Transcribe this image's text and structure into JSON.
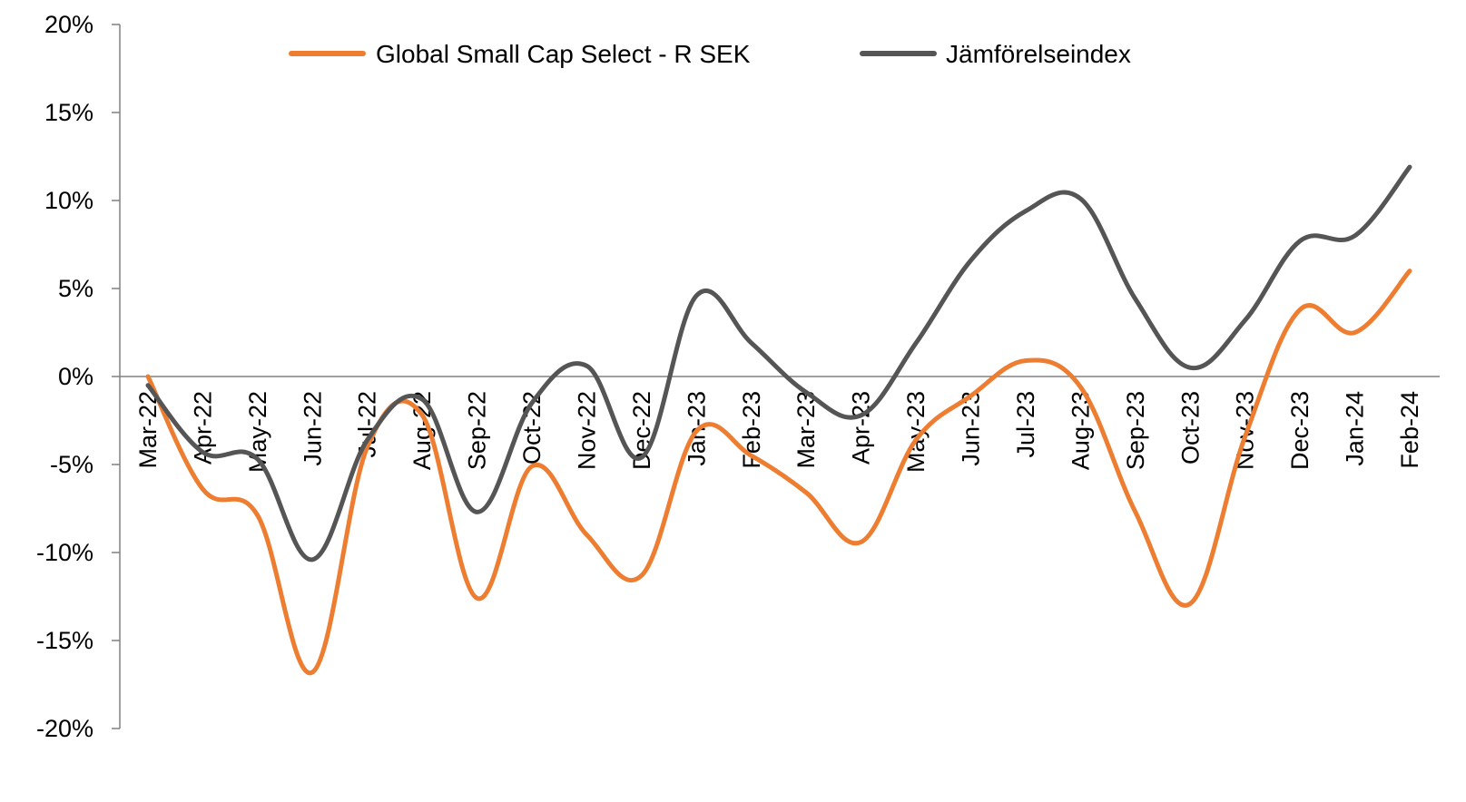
{
  "chart_data": {
    "type": "line",
    "title": "",
    "xlabel": "",
    "ylabel": "",
    "ylim": [
      -0.2,
      0.2
    ],
    "yticks": [
      0.2,
      0.15,
      0.1,
      0.05,
      0.0,
      -0.05,
      -0.1,
      -0.15,
      -0.2
    ],
    "ytick_labels": [
      "20%",
      "15%",
      "10%",
      "5%",
      "0%",
      "-5%",
      "-10%",
      "-15%",
      "-20%"
    ],
    "categories": [
      "Mar-22",
      "Apr-22",
      "May-22",
      "Jun-22",
      "Jul-22",
      "Aug-22",
      "Sep-22",
      "Oct-22",
      "Nov-22",
      "Dec-22",
      "Jan-23",
      "Feb-23",
      "Mar-23",
      "Apr-23",
      "May-23",
      "Jun-23",
      "Jul-23",
      "Aug-23",
      "Sep-23",
      "Oct-23",
      "Nov-23",
      "Dec-23",
      "Jan-24",
      "Feb-24"
    ],
    "legend_position": "top",
    "grid": false,
    "series": [
      {
        "name": "Global Small Cap Select - R SEK",
        "color": "#ED7D31",
        "values": [
          0.0,
          -0.064,
          -0.079,
          -0.168,
          -0.04,
          -0.022,
          -0.126,
          -0.051,
          -0.09,
          -0.113,
          -0.031,
          -0.045,
          -0.066,
          -0.094,
          -0.036,
          -0.011,
          0.009,
          -0.006,
          -0.077,
          -0.129,
          -0.034,
          0.038,
          0.025,
          0.06
        ]
      },
      {
        "name": "Jämförelseindex",
        "color": "#555555",
        "values": [
          -0.005,
          -0.043,
          -0.047,
          -0.104,
          -0.036,
          -0.013,
          -0.077,
          -0.015,
          0.006,
          -0.046,
          0.046,
          0.019,
          -0.009,
          -0.022,
          0.019,
          0.066,
          0.094,
          0.101,
          0.044,
          0.005,
          0.032,
          0.077,
          0.08,
          0.119
        ]
      }
    ]
  }
}
